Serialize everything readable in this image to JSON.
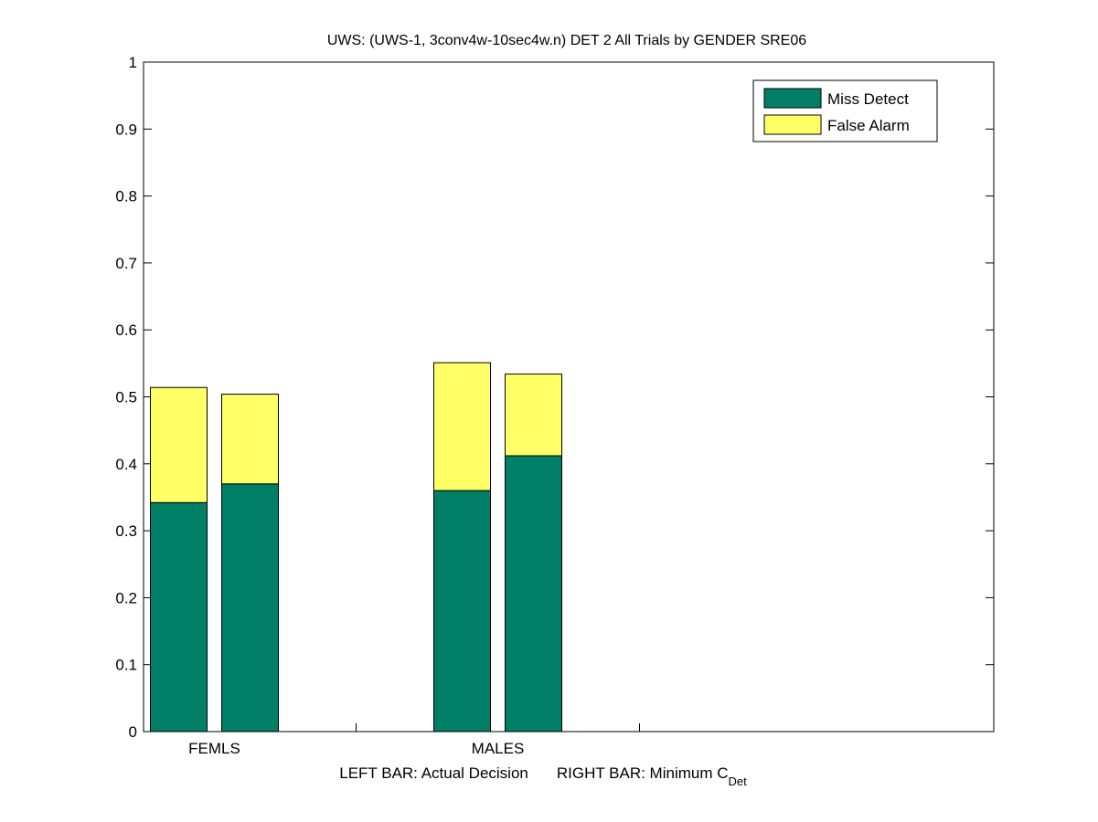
{
  "chart_data": {
    "type": "bar",
    "stacked": true,
    "title": "UWS: (UWS-1, 3conv4w-10sec4w.n) DET 2 All Trials by GENDER SRE06",
    "xlabel": {
      "left_text": "LEFT BAR: Actual Decision",
      "right_text": "RIGHT BAR: Minimum C",
      "right_sub": "Det"
    },
    "ylabel": "",
    "ylim": [
      0,
      1
    ],
    "yticks": [
      "0",
      "0.1",
      "0.2",
      "0.3",
      "0.4",
      "0.5",
      "0.6",
      "0.7",
      "0.8",
      "0.9",
      "1"
    ],
    "grid": false,
    "legend_position": "top-right",
    "groups": [
      {
        "label": "FEMLS",
        "bars": [
          {
            "role": "actual",
            "miss": 0.342,
            "false_alarm": 0.172
          },
          {
            "role": "minimum",
            "miss": 0.37,
            "false_alarm": 0.134
          }
        ]
      },
      {
        "label": "MALES",
        "bars": [
          {
            "role": "actual",
            "miss": 0.36,
            "false_alarm": 0.191
          },
          {
            "role": "minimum",
            "miss": 0.412,
            "false_alarm": 0.122
          }
        ]
      }
    ],
    "series": [
      {
        "name": "Miss Detect",
        "color": "#007f66"
      },
      {
        "name": "False Alarm",
        "color": "#ffff66"
      }
    ]
  }
}
